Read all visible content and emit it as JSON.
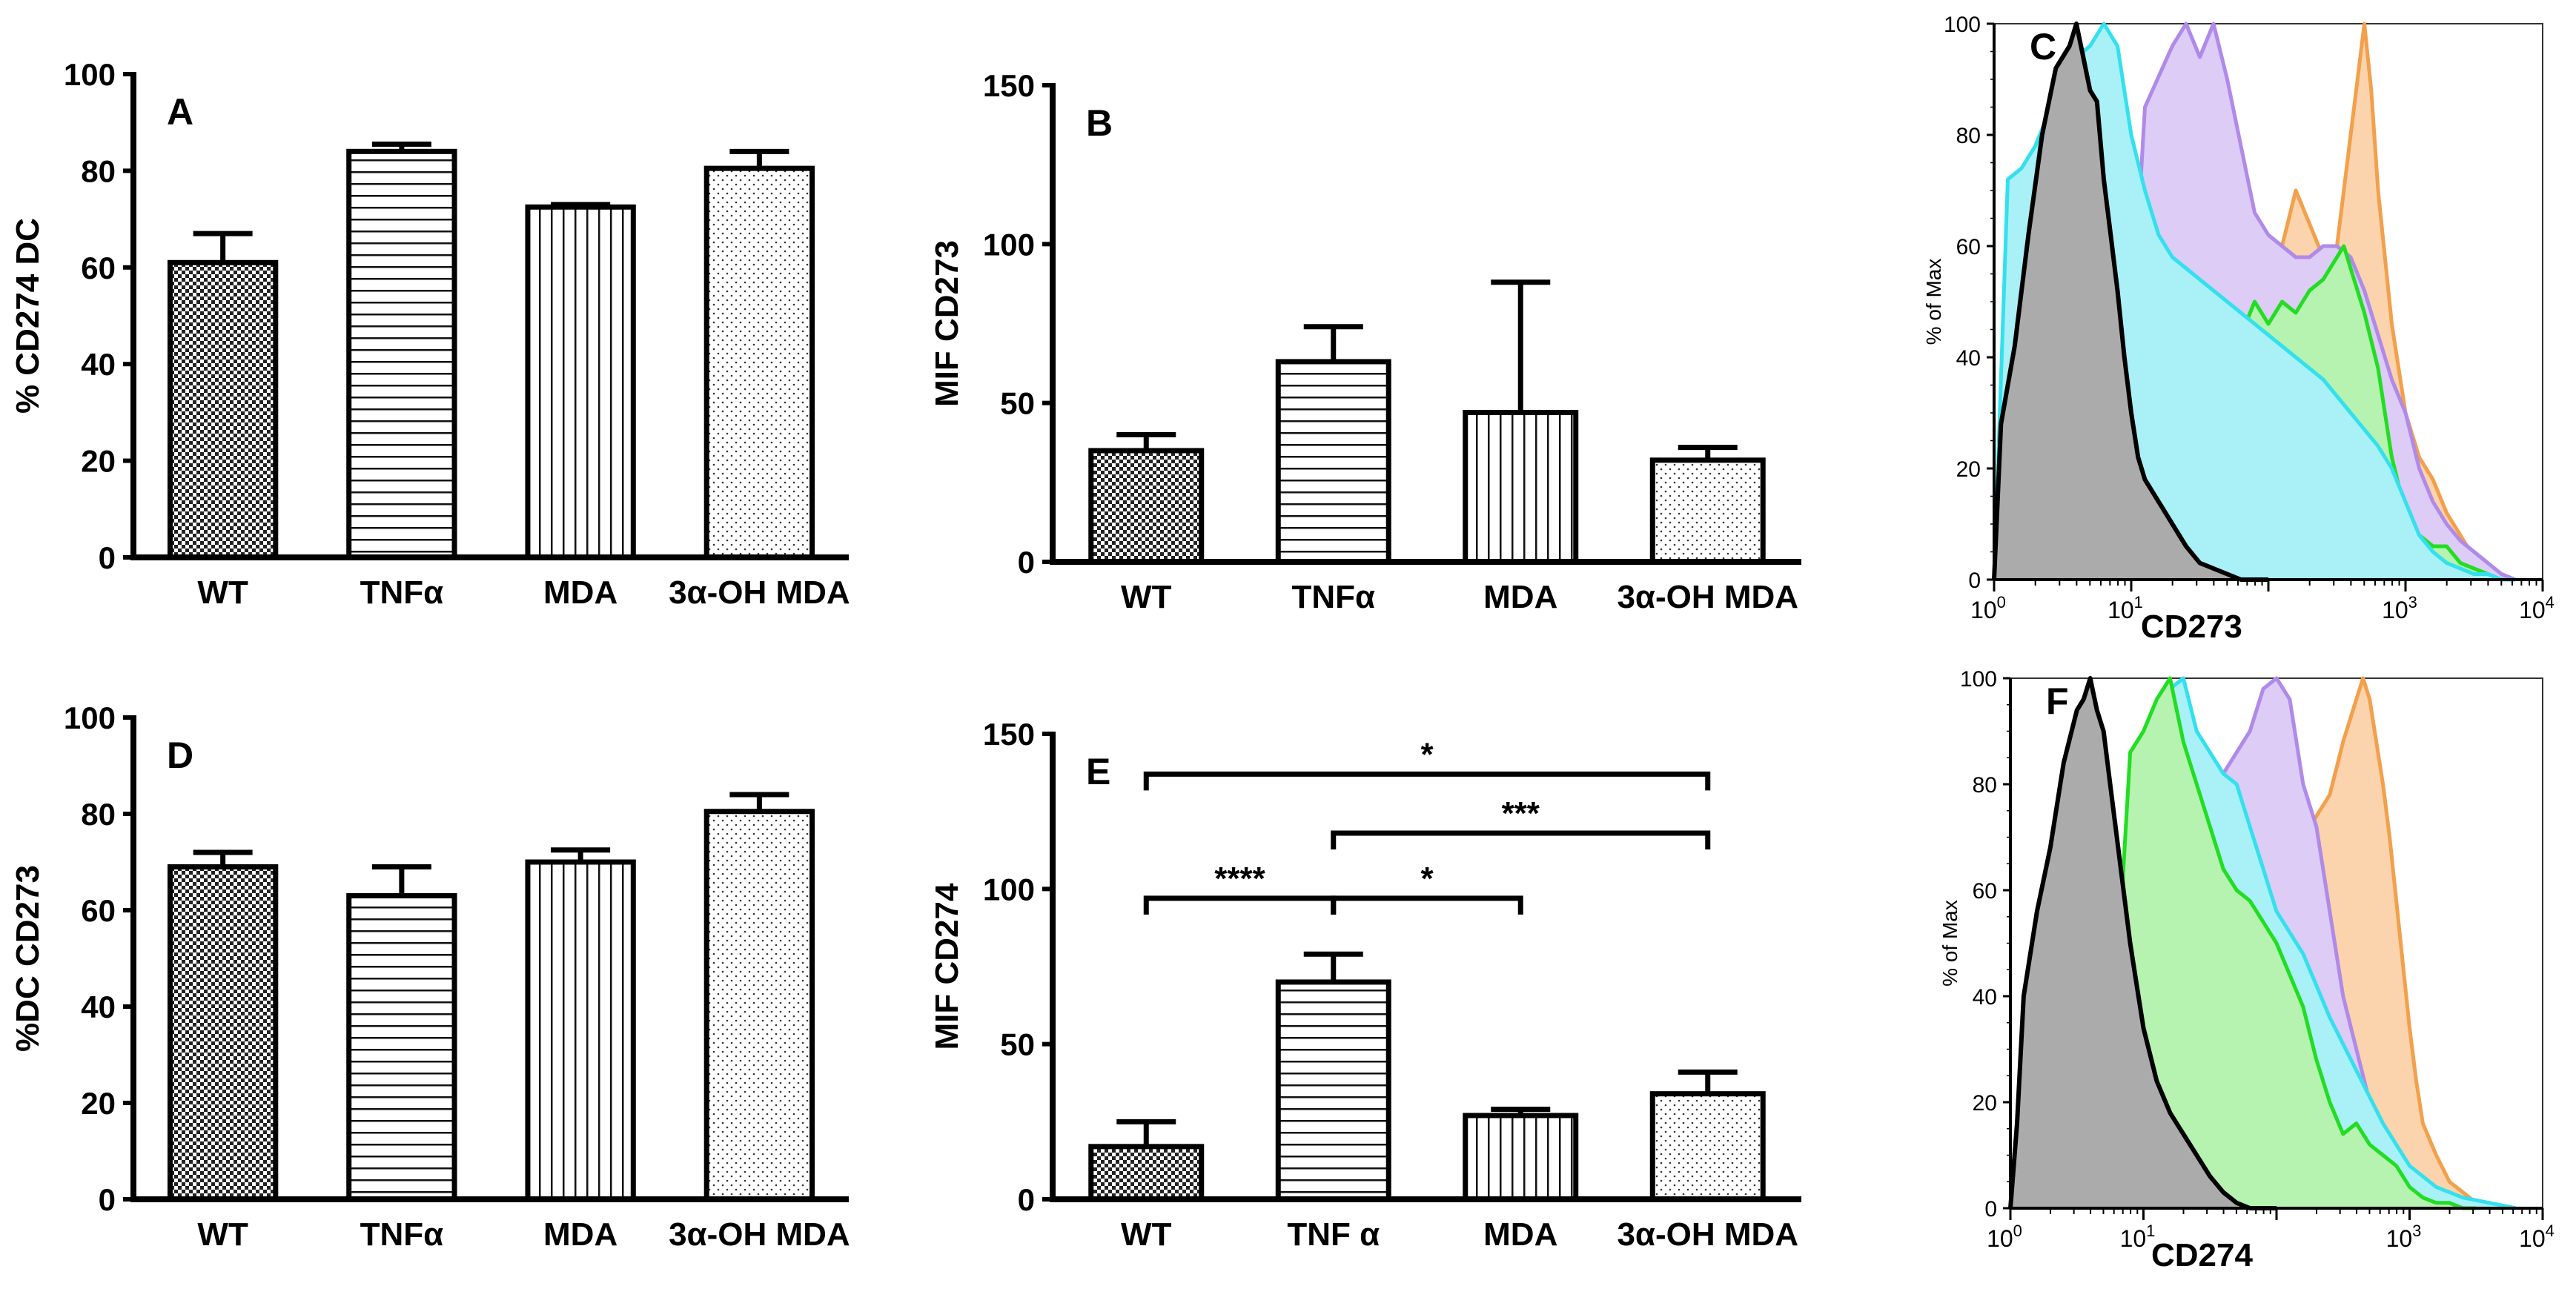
{
  "chart_data": [
    {
      "id": "A",
      "type": "bar",
      "panel_label": "A",
      "ylabel": "% CD274 DC",
      "ylim": [
        0,
        100
      ],
      "yticks": [
        "0",
        "20",
        "40",
        "60",
        "80",
        "100"
      ],
      "categories": [
        "WT",
        "TNFα",
        "MDA",
        "3α-OH MDA"
      ],
      "values": [
        61,
        84,
        72.5,
        80.5
      ],
      "errors": [
        6,
        1.5,
        0.5,
        3.5
      ],
      "patterns": [
        "checker",
        "hlines",
        "vlines",
        "dots"
      ],
      "significance": []
    },
    {
      "id": "B",
      "type": "bar",
      "panel_label": "B",
      "ylabel": "MIF CD273",
      "ylim": [
        0,
        150
      ],
      "yticks": [
        "0",
        "50",
        "100",
        "150"
      ],
      "categories": [
        "WT",
        "TNFα",
        "MDA",
        "3α-OH MDA"
      ],
      "values": [
        35,
        63,
        47,
        32
      ],
      "errors": [
        5,
        11,
        41,
        4
      ],
      "patterns": [
        "checker",
        "hlines",
        "vlines",
        "dots"
      ],
      "significance": []
    },
    {
      "id": "D",
      "type": "bar",
      "panel_label": "D",
      "ylabel": "%DC CD273",
      "ylim": [
        0,
        100
      ],
      "yticks": [
        "0",
        "20",
        "40",
        "60",
        "80",
        "100"
      ],
      "categories": [
        "WT",
        "TNFα",
        "MDA",
        "3α-OH MDA"
      ],
      "values": [
        69,
        63,
        70,
        80.5
      ],
      "errors": [
        3,
        6,
        2.5,
        3.5
      ],
      "patterns": [
        "checker",
        "hlines",
        "vlines",
        "dots"
      ],
      "significance": []
    },
    {
      "id": "E",
      "type": "bar",
      "panel_label": "E",
      "ylabel": "MIF CD274",
      "ylim": [
        0,
        150
      ],
      "yticks": [
        "0",
        "50",
        "100",
        "150"
      ],
      "categories": [
        "WT",
        "TNF α",
        "MDA",
        "3α-OH MDA"
      ],
      "values": [
        17,
        70,
        27,
        34
      ],
      "errors": [
        8,
        9,
        2,
        7
      ],
      "patterns": [
        "checker",
        "hlines",
        "vlines",
        "dots"
      ],
      "significance": [
        {
          "from": 0,
          "to": 3,
          "y": 137,
          "label": "*"
        },
        {
          "from": 1,
          "to": 3,
          "y": 118,
          "label": "***"
        },
        {
          "from": 0,
          "to": 1,
          "y": 97,
          "label": "****"
        },
        {
          "from": 1,
          "to": 2,
          "y": 97,
          "label": "*"
        }
      ]
    },
    {
      "id": "C",
      "type": "area",
      "panel_label": "C",
      "ylabel": "% of Max",
      "xlabel": "CD273",
      "xscale": "log",
      "xlim": [
        0,
        4
      ],
      "ylim": [
        0,
        100
      ],
      "yticks": [
        "0",
        "20",
        "40",
        "60",
        "80",
        "100"
      ],
      "xticks": [
        {
          "base": "10",
          "exp": "0"
        },
        {
          "base": "10",
          "exp": "1"
        },
        {
          "base": "10",
          "exp": "3"
        },
        {
          "base": "10",
          "exp": "4"
        }
      ],
      "xtick_positions": [
        0,
        1,
        3,
        4
      ],
      "series": [
        {
          "name": "orange",
          "stroke": "#f2a04c",
          "fill": "#fbd3ad",
          "outline": false,
          "x": [
            1.6,
            1.8,
            1.9,
            2.0,
            2.1,
            2.2,
            2.3,
            2.4,
            2.5,
            2.55,
            2.6,
            2.65,
            2.7,
            2.75,
            2.8,
            2.9,
            3.0,
            3.1,
            3.2,
            3.3,
            3.4,
            3.5,
            3.6,
            3.7,
            3.8
          ],
          "y": [
            0,
            50,
            62,
            56,
            60,
            70,
            64,
            58,
            60,
            70,
            80,
            90,
            100,
            88,
            70,
            46,
            30,
            22,
            18,
            12,
            8,
            4,
            2,
            1,
            0
          ]
        },
        {
          "name": "purple",
          "stroke": "#b08ae8",
          "fill": "#dcccf6",
          "outline": false,
          "x": [
            0.9,
            1.1,
            1.3,
            1.4,
            1.5,
            1.6,
            1.7,
            1.8,
            1.9,
            2.0,
            2.1,
            2.2,
            2.3,
            2.4,
            2.5,
            2.6,
            2.7,
            2.8,
            2.9,
            3.0,
            3.1,
            3.2,
            3.3,
            3.4,
            3.5,
            3.6,
            3.7,
            3.8
          ],
          "y": [
            0,
            85,
            96,
            100,
            94,
            100,
            90,
            78,
            66,
            62,
            60,
            58,
            58,
            60,
            60,
            58,
            52,
            44,
            36,
            30,
            20,
            14,
            10,
            7,
            5,
            3,
            1,
            0
          ]
        },
        {
          "name": "green",
          "stroke": "#22dd22",
          "fill": "#b6f2b0",
          "outline": false,
          "x": [
            1.6,
            1.8,
            1.9,
            2.0,
            2.1,
            2.2,
            2.3,
            2.4,
            2.5,
            2.55,
            2.6,
            2.7,
            2.8,
            2.9,
            3.0,
            3.1,
            3.2,
            3.3,
            3.4,
            3.5,
            3.6,
            3.7,
            3.8
          ],
          "y": [
            0,
            44,
            50,
            46,
            50,
            48,
            52,
            54,
            58,
            60,
            56,
            48,
            38,
            22,
            12,
            8,
            6,
            6,
            3,
            2,
            1,
            0,
            0
          ]
        },
        {
          "name": "cyan",
          "stroke": "#34e0ee",
          "fill": "#a9f0f7",
          "outline": false,
          "x": [
            0,
            0.1,
            0.2,
            0.3,
            0.5,
            0.6,
            0.7,
            0.8,
            0.9,
            1.0,
            1.1,
            1.2,
            1.3,
            1.4,
            1.5,
            1.6,
            1.8,
            2.0,
            2.2,
            2.4,
            2.6,
            2.8,
            2.9,
            3.0,
            3.1,
            3.2,
            3.3,
            3.4,
            3.5,
            3.6,
            3.7,
            3.8
          ],
          "y": [
            0,
            72,
            74,
            78,
            90,
            94,
            96,
            100,
            96,
            80,
            70,
            62,
            58,
            56,
            54,
            52,
            48,
            44,
            40,
            36,
            30,
            24,
            20,
            14,
            8,
            5,
            3,
            2,
            1,
            1,
            0,
            0
          ]
        },
        {
          "name": "black",
          "stroke": "#000000",
          "fill": "#ababab",
          "outline": true,
          "x": [
            0,
            0.05,
            0.15,
            0.25,
            0.35,
            0.45,
            0.55,
            0.6,
            0.65,
            0.7,
            0.75,
            0.8,
            0.85,
            0.9,
            0.95,
            1.0,
            1.05,
            1.1,
            1.15,
            1.2,
            1.25,
            1.3,
            1.4,
            1.5,
            1.6,
            1.7,
            1.8,
            1.9,
            2.0
          ],
          "y": [
            0,
            28,
            42,
            62,
            80,
            92,
            96,
            100,
            94,
            88,
            86,
            72,
            62,
            52,
            40,
            30,
            22,
            18,
            16,
            14,
            12,
            10,
            6,
            3,
            2,
            1,
            0,
            0,
            0
          ]
        }
      ]
    },
    {
      "id": "F",
      "type": "area",
      "panel_label": "F",
      "ylabel": "% of Max",
      "xlabel": "CD274",
      "xscale": "log",
      "xlim": [
        0,
        4
      ],
      "ylim": [
        0,
        100
      ],
      "yticks": [
        "0",
        "20",
        "40",
        "60",
        "80",
        "100"
      ],
      "xticks": [
        {
          "base": "10",
          "exp": "0"
        },
        {
          "base": "10",
          "exp": "1"
        },
        {
          "base": "10",
          "exp": "3"
        },
        {
          "base": "10",
          "exp": "4"
        }
      ],
      "xtick_positions": [
        0,
        1,
        3,
        4
      ],
      "series": [
        {
          "name": "orange",
          "stroke": "#f2a04c",
          "fill": "#fbd3ad",
          "outline": false,
          "x": [
            1.8,
            2.0,
            2.1,
            2.2,
            2.3,
            2.4,
            2.5,
            2.6,
            2.65,
            2.7,
            2.75,
            2.8,
            2.85,
            2.9,
            2.95,
            3.0,
            3.05,
            3.1,
            3.2,
            3.3,
            3.4,
            3.5,
            3.6,
            3.7
          ],
          "y": [
            0,
            62,
            66,
            70,
            74,
            78,
            88,
            96,
            100,
            96,
            88,
            80,
            70,
            58,
            46,
            34,
            24,
            16,
            10,
            5,
            3,
            1,
            0,
            0
          ]
        },
        {
          "name": "purple",
          "stroke": "#b08ae8",
          "fill": "#dcccf6",
          "outline": false,
          "x": [
            1.2,
            1.4,
            1.6,
            1.7,
            1.8,
            1.9,
            2.0,
            2.1,
            2.2,
            2.3,
            2.4,
            2.5,
            2.6,
            2.7,
            2.8,
            2.9,
            3.0,
            3.1,
            3.2
          ],
          "y": [
            0,
            86,
            82,
            86,
            90,
            98,
            100,
            96,
            80,
            72,
            56,
            40,
            30,
            20,
            12,
            6,
            3,
            1,
            0
          ]
        },
        {
          "name": "cyan",
          "stroke": "#34e0ee",
          "fill": "#a9f0f7",
          "outline": false,
          "x": [
            0.8,
            1.0,
            1.1,
            1.2,
            1.3,
            1.4,
            1.5,
            1.6,
            1.7,
            1.8,
            1.9,
            2.0,
            2.2,
            2.4,
            2.6,
            2.8,
            3.0,
            3.2,
            3.4,
            3.6,
            3.8
          ],
          "y": [
            0,
            88,
            90,
            98,
            100,
            90,
            86,
            82,
            80,
            72,
            64,
            56,
            48,
            36,
            26,
            16,
            8,
            4,
            2,
            1,
            0
          ]
        },
        {
          "name": "green",
          "stroke": "#22dd22",
          "fill": "#b6f2b0",
          "outline": false,
          "x": [
            0.7,
            0.9,
            1.0,
            1.1,
            1.2,
            1.3,
            1.4,
            1.5,
            1.6,
            1.7,
            1.8,
            1.9,
            2.0,
            2.1,
            2.2,
            2.3,
            2.4,
            2.5,
            2.6,
            2.7,
            2.8,
            2.9,
            3.0,
            3.1,
            3.2,
            3.3,
            3.4,
            3.5
          ],
          "y": [
            0,
            86,
            90,
            96,
            100,
            88,
            80,
            72,
            64,
            60,
            58,
            54,
            50,
            44,
            38,
            28,
            20,
            14,
            16,
            12,
            10,
            8,
            4,
            2,
            1,
            1,
            0,
            0
          ]
        },
        {
          "name": "black",
          "stroke": "#000000",
          "fill": "#ababab",
          "outline": true,
          "x": [
            0,
            0.05,
            0.1,
            0.2,
            0.3,
            0.4,
            0.5,
            0.55,
            0.6,
            0.65,
            0.7,
            0.75,
            0.8,
            0.85,
            0.9,
            0.95,
            1.0,
            1.1,
            1.2,
            1.3,
            1.4,
            1.5,
            1.6,
            1.7,
            1.8,
            1.9,
            2.0
          ],
          "y": [
            0,
            16,
            40,
            56,
            68,
            84,
            94,
            96,
            100,
            94,
            90,
            80,
            70,
            60,
            50,
            42,
            34,
            24,
            18,
            14,
            10,
            6,
            3,
            1,
            0,
            0,
            0
          ]
        }
      ]
    }
  ]
}
